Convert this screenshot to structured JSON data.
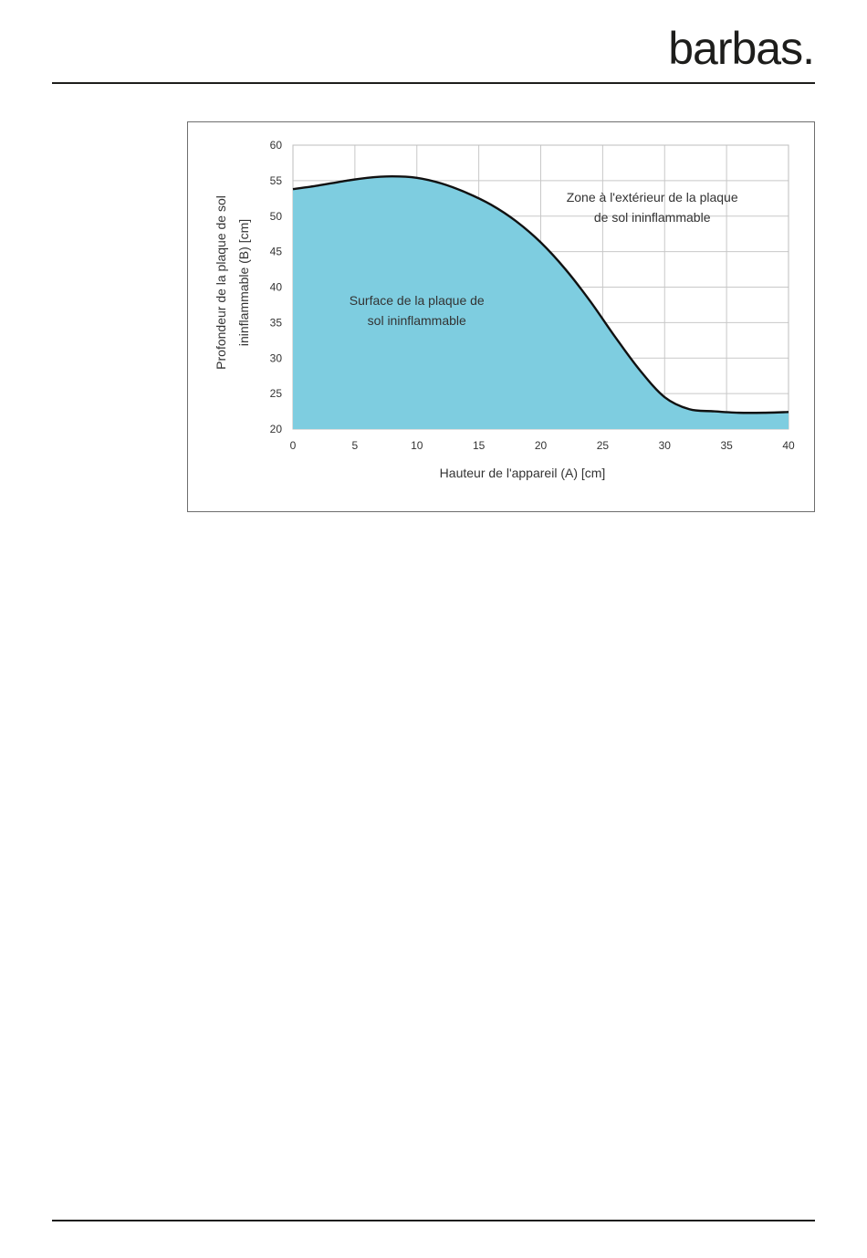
{
  "header": {
    "brand": "barbas."
  },
  "colors": {
    "area_fill": "#7ecde0",
    "curve": "#111111",
    "grid": "#c8c8c8",
    "rule": "#1d1d1b"
  },
  "chart_data": {
    "type": "area",
    "title": "",
    "xlabel": "Hauteur de l'appareil (A) [cm]",
    "ylabel_lines": [
      "Profondeur de la plaque de sol",
      "ininflammable (B) [cm]"
    ],
    "xlim": [
      0,
      40
    ],
    "ylim": [
      20,
      60
    ],
    "xticks": [
      0,
      5,
      10,
      15,
      20,
      25,
      30,
      35,
      40
    ],
    "yticks": [
      20,
      25,
      30,
      35,
      40,
      45,
      50,
      55,
      60
    ],
    "grid": true,
    "x": [
      0,
      2,
      4,
      6,
      8,
      10,
      12,
      14,
      16,
      18,
      20,
      22,
      24,
      26,
      28,
      30,
      32,
      34,
      36,
      38,
      40
    ],
    "y": [
      53.8,
      54.3,
      54.9,
      55.4,
      55.6,
      55.4,
      54.6,
      53.3,
      51.6,
      49.3,
      46.3,
      42.5,
      38.0,
      33.0,
      28.3,
      24.5,
      22.8,
      22.5,
      22.3,
      22.3,
      22.4
    ],
    "annotations": [
      {
        "lines": [
          "Zone à l'extérieur de la plaque",
          "de sol ininflammable"
        ],
        "x": 29,
        "y": 52
      },
      {
        "lines": [
          "Surface de la plaque de",
          "sol ininflammable"
        ],
        "x": 10,
        "y": 37.5
      }
    ]
  }
}
